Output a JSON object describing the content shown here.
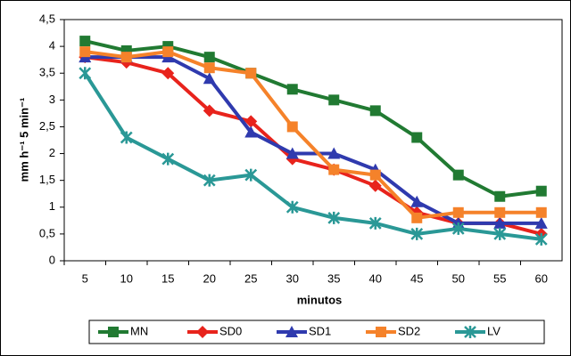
{
  "chart_data": {
    "type": "line",
    "x_label": "minutos",
    "y_label": "mm h⁻¹ 5 min⁻¹",
    "categories": [
      "5",
      "10",
      "15",
      "20",
      "25",
      "30",
      "35",
      "40",
      "45",
      "50",
      "55",
      "60"
    ],
    "ylim": [
      0,
      4.5
    ],
    "yticks": [
      0,
      {
        "value": 0.5,
        "label": "0,5"
      },
      1,
      {
        "value": 1.5,
        "label": "1,5"
      },
      2,
      {
        "value": 2.5,
        "label": "2,5"
      },
      3,
      {
        "value": 3.5,
        "label": "3,5"
      },
      4,
      {
        "value": 4.5,
        "label": "4,5"
      }
    ],
    "legend": "bottom",
    "series": [
      {
        "name": "MN",
        "color": "#217a32",
        "marker": "square",
        "values": [
          4.1,
          3.92,
          4.0,
          3.8,
          3.5,
          3.2,
          3.0,
          2.8,
          2.3,
          1.6,
          1.2,
          1.3
        ]
      },
      {
        "name": "SD0",
        "color": "#e8231c",
        "marker": "diamond",
        "values": [
          3.8,
          3.7,
          3.5,
          2.8,
          2.6,
          1.9,
          1.7,
          1.4,
          0.9,
          0.7,
          0.7,
          0.5
        ]
      },
      {
        "name": "SD1",
        "color": "#2f3aae",
        "marker": "triangle",
        "values": [
          3.8,
          3.8,
          3.8,
          3.4,
          2.4,
          2.0,
          2.0,
          1.7,
          1.1,
          0.7,
          0.7,
          0.7
        ]
      },
      {
        "name": "SD2",
        "color": "#f5822a",
        "marker": "square",
        "values": [
          3.9,
          3.8,
          3.9,
          3.6,
          3.5,
          2.5,
          1.7,
          1.6,
          0.8,
          0.9,
          0.9,
          0.9
        ]
      },
      {
        "name": "LV",
        "color": "#2a9896",
        "marker": "star",
        "values": [
          3.5,
          2.3,
          1.9,
          1.5,
          1.6,
          1.0,
          0.8,
          0.7,
          0.5,
          0.6,
          0.5,
          0.4
        ]
      }
    ]
  }
}
